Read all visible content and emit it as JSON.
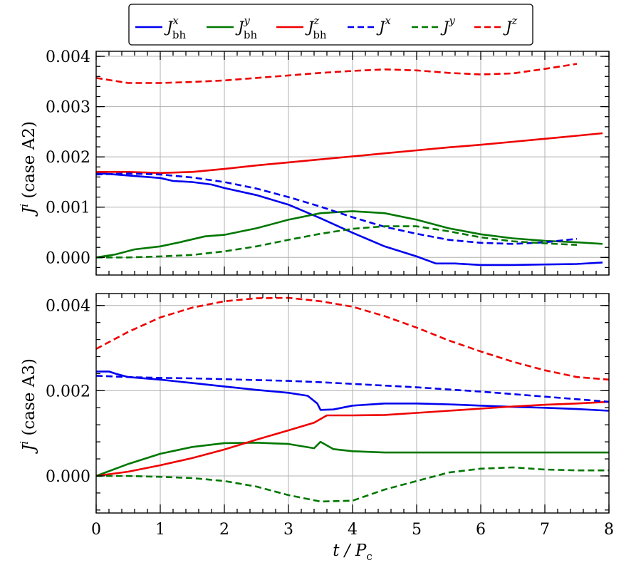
{
  "chart_data": [
    {
      "type": "line",
      "panel": "top",
      "ylabel": "J^i (case A2)",
      "xlim": [
        0,
        8
      ],
      "ylim": [
        -0.00035,
        0.0041
      ],
      "yticks": [
        "0.000",
        "0.001",
        "0.002",
        "0.003",
        "0.004"
      ],
      "series": [
        {
          "key": "jbh_x",
          "color": "#0000ee",
          "dash": "solid",
          "x": [
            0,
            0.2,
            0.5,
            0.8,
            1.0,
            1.2,
            1.5,
            1.8,
            2.0,
            2.5,
            3.0,
            3.5,
            4.0,
            4.5,
            5.0,
            5.3,
            5.6,
            6.0,
            6.5,
            7.0,
            7.5,
            7.9
          ],
          "y": [
            0.00168,
            0.00166,
            0.00163,
            0.0016,
            0.00158,
            0.00152,
            0.0015,
            0.00145,
            0.00138,
            0.00124,
            0.00105,
            0.00078,
            0.00049,
            0.00022,
            2e-05,
            -0.00012,
            -0.00012,
            -0.00015,
            -0.00015,
            -0.00014,
            -0.00013,
            -0.0001
          ]
        },
        {
          "key": "jbh_y",
          "color": "#007700",
          "dash": "solid",
          "x": [
            0,
            0.3,
            0.6,
            1.0,
            1.3,
            1.7,
            2.0,
            2.5,
            3.0,
            3.5,
            4.0,
            4.5,
            5.0,
            5.5,
            6.0,
            6.5,
            7.0,
            7.5,
            7.9
          ],
          "y": [
            0.0,
            6e-05,
            0.00016,
            0.00022,
            0.0003,
            0.00042,
            0.00045,
            0.00058,
            0.00075,
            0.00088,
            0.00092,
            0.00088,
            0.00075,
            0.00058,
            0.00046,
            0.00038,
            0.00033,
            0.0003,
            0.00027
          ]
        },
        {
          "key": "jbh_z",
          "color": "#ee0000",
          "dash": "solid",
          "x": [
            0,
            0.5,
            1.0,
            1.5,
            2.0,
            2.5,
            3.0,
            3.5,
            4.0,
            4.5,
            5.0,
            5.5,
            6.0,
            6.5,
            7.0,
            7.5,
            7.9
          ],
          "y": [
            0.0017,
            0.0017,
            0.00168,
            0.0017,
            0.00176,
            0.00183,
            0.00189,
            0.00195,
            0.00201,
            0.00207,
            0.00213,
            0.00219,
            0.00224,
            0.0023,
            0.00236,
            0.00242,
            0.00247
          ]
        },
        {
          "key": "j_x",
          "color": "#0000ee",
          "dash": "dashed",
          "x": [
            0,
            0.5,
            1.0,
            1.5,
            2.0,
            2.5,
            3.0,
            3.5,
            4.0,
            4.5,
            5.0,
            5.5,
            6.0,
            6.5,
            7.0,
            7.5
          ],
          "y": [
            0.00165,
            0.00167,
            0.00165,
            0.00159,
            0.0015,
            0.00137,
            0.0012,
            0.00101,
            0.0008,
            0.00061,
            0.00047,
            0.00035,
            0.00029,
            0.00027,
            0.0003,
            0.00037
          ]
        },
        {
          "key": "j_y",
          "color": "#007700",
          "dash": "dashed",
          "x": [
            0,
            0.5,
            1.0,
            1.5,
            2.0,
            2.5,
            3.0,
            3.5,
            4.0,
            4.5,
            5.0,
            5.5,
            6.0,
            6.5,
            7.0,
            7.5
          ],
          "y": [
            0.0,
            0.0,
            2e-05,
            5e-05,
            0.00012,
            0.00022,
            0.00035,
            0.00047,
            0.00057,
            0.00062,
            0.00062,
            0.00052,
            0.0004,
            0.00032,
            0.00028,
            0.00025
          ]
        },
        {
          "key": "j_z",
          "color": "#ee0000",
          "dash": "dashed",
          "x": [
            0,
            0.5,
            1.0,
            1.5,
            2.0,
            2.5,
            3.0,
            3.5,
            4.0,
            4.5,
            5.0,
            5.5,
            6.0,
            6.5,
            7.0,
            7.5
          ],
          "y": [
            0.00357,
            0.00347,
            0.00347,
            0.00349,
            0.00352,
            0.00357,
            0.00362,
            0.00367,
            0.00371,
            0.00374,
            0.00372,
            0.00367,
            0.00364,
            0.00366,
            0.00375,
            0.00385
          ]
        }
      ]
    },
    {
      "type": "line",
      "panel": "bottom",
      "ylabel": "J^i (case A3)",
      "xlabel": "t / P_c",
      "xlim": [
        0,
        8
      ],
      "ylim": [
        -0.00087,
        0.00428
      ],
      "xticks": [
        "0",
        "1",
        "2",
        "3",
        "4",
        "5",
        "6",
        "7",
        "8"
      ],
      "yticks": [
        "0.000",
        "0.002",
        "0.004"
      ],
      "series": [
        {
          "key": "jbh_x",
          "color": "#0000ee",
          "dash": "solid",
          "x": [
            0,
            0.2,
            0.3,
            0.5,
            1.0,
            1.5,
            2.0,
            2.5,
            3.0,
            3.3,
            3.45,
            3.5,
            3.7,
            4.0,
            4.5,
            5.0,
            5.5,
            6.0,
            6.5,
            7.0,
            7.5,
            8.0
          ],
          "y": [
            0.00245,
            0.00245,
            0.0024,
            0.00232,
            0.00226,
            0.00218,
            0.0021,
            0.00202,
            0.00195,
            0.00188,
            0.0017,
            0.00155,
            0.00156,
            0.00165,
            0.0017,
            0.0017,
            0.00168,
            0.00165,
            0.00162,
            0.0016,
            0.00157,
            0.00153
          ]
        },
        {
          "key": "jbh_y",
          "color": "#007700",
          "dash": "solid",
          "x": [
            0,
            0.5,
            1.0,
            1.5,
            2.0,
            2.5,
            3.0,
            3.4,
            3.5,
            3.7,
            4.0,
            4.5,
            5.0,
            6.0,
            7.0,
            8.0
          ],
          "y": [
            0.0,
            0.00028,
            0.00052,
            0.00068,
            0.00077,
            0.00078,
            0.00075,
            0.00065,
            0.0008,
            0.00063,
            0.00058,
            0.00055,
            0.00055,
            0.00055,
            0.00055,
            0.00055
          ]
        },
        {
          "key": "jbh_z",
          "color": "#ee0000",
          "dash": "solid",
          "x": [
            0,
            0.5,
            1.0,
            1.5,
            2.0,
            2.5,
            3.0,
            3.4,
            3.6,
            4.0,
            4.5,
            5.0,
            5.5,
            6.0,
            6.5,
            7.0,
            7.5,
            8.0
          ],
          "y": [
            0.0,
            0.0001,
            0.00025,
            0.00042,
            0.00062,
            0.00085,
            0.00107,
            0.00125,
            0.00142,
            0.00142,
            0.00143,
            0.00148,
            0.00153,
            0.00158,
            0.00163,
            0.00167,
            0.0017,
            0.00174
          ]
        },
        {
          "key": "j_x",
          "color": "#0000ee",
          "dash": "dashed",
          "x": [
            0,
            0.5,
            1.0,
            1.5,
            2.0,
            2.5,
            3.0,
            3.5,
            4.0,
            4.5,
            5.0,
            5.5,
            6.0,
            6.5,
            7.0,
            7.5,
            8.0
          ],
          "y": [
            0.00235,
            0.00232,
            0.0023,
            0.00229,
            0.00227,
            0.00225,
            0.00223,
            0.0022,
            0.00216,
            0.00212,
            0.00208,
            0.00203,
            0.00198,
            0.00192,
            0.00186,
            0.0018,
            0.00174
          ]
        },
        {
          "key": "j_y",
          "color": "#007700",
          "dash": "dashed",
          "x": [
            0,
            0.5,
            1.0,
            1.5,
            2.0,
            2.5,
            3.0,
            3.5,
            4.0,
            4.5,
            5.0,
            5.5,
            6.0,
            6.5,
            7.0,
            7.5,
            8.0
          ],
          "y": [
            0.0,
            0.0,
            -2e-05,
            -5e-05,
            -0.00012,
            -0.00025,
            -0.00045,
            -0.0006,
            -0.00058,
            -0.00032,
            -0.00012,
            8e-05,
            0.00017,
            0.0002,
            0.00015,
            0.00013,
            0.00013
          ]
        },
        {
          "key": "j_z",
          "color": "#ee0000",
          "dash": "dashed",
          "x": [
            0,
            0.5,
            1.0,
            1.5,
            2.0,
            2.5,
            3.0,
            3.5,
            4.0,
            4.5,
            5.0,
            5.5,
            6.0,
            6.5,
            7.0,
            7.5,
            8.0
          ],
          "y": [
            0.00298,
            0.00338,
            0.00372,
            0.00395,
            0.0041,
            0.00417,
            0.00418,
            0.0041,
            0.00397,
            0.00375,
            0.00348,
            0.00318,
            0.00292,
            0.00268,
            0.00248,
            0.00232,
            0.00226
          ]
        }
      ]
    }
  ],
  "legend": {
    "entries": [
      {
        "key": "jbh_x",
        "base": "J",
        "sup": "x",
        "sub": "bh",
        "color": "#0000ee",
        "dash": "solid"
      },
      {
        "key": "jbh_y",
        "base": "J",
        "sup": "y",
        "sub": "bh",
        "color": "#007700",
        "dash": "solid"
      },
      {
        "key": "jbh_z",
        "base": "J",
        "sup": "z",
        "sub": "bh",
        "color": "#ee0000",
        "dash": "solid"
      },
      {
        "key": "j_x",
        "base": "J",
        "sup": "x",
        "sub": "",
        "color": "#0000ee",
        "dash": "dashed"
      },
      {
        "key": "j_y",
        "base": "J",
        "sup": "y",
        "sub": "",
        "color": "#007700",
        "dash": "dashed"
      },
      {
        "key": "j_z",
        "base": "J",
        "sup": "z",
        "sub": "",
        "color": "#ee0000",
        "dash": "dashed"
      }
    ]
  },
  "labels": {
    "top_ylabel_base": "J",
    "top_ylabel_sup": "i",
    "top_ylabel_rest": " (case A2)",
    "bottom_ylabel_base": "J",
    "bottom_ylabel_sup": "i",
    "bottom_ylabel_rest": " (case A3)",
    "xlabel": "t / P",
    "xlabel_sub": "c"
  }
}
